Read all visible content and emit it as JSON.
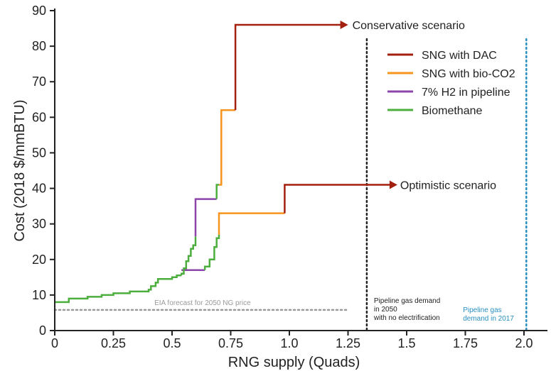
{
  "chart_data": {
    "type": "line",
    "title": "",
    "xlabel": "RNG supply (Quads)",
    "ylabel": "Cost (2018 $/mmBTU)",
    "xlim": [
      0,
      2.1
    ],
    "ylim": [
      0,
      90
    ],
    "x_ticks": [
      "0",
      "0.25",
      "0.5",
      "0.75",
      "1.0",
      "1.25",
      "1.5",
      "1.75",
      "2.0"
    ],
    "y_ticks": [
      "0",
      "10",
      "20",
      "30",
      "40",
      "50",
      "60",
      "70",
      "80",
      "90"
    ],
    "grid": false,
    "legend_position": "top-right",
    "colors": {
      "SNG with DAC": "#a31f0e",
      "SNG with bio-CO2": "#f7941d",
      "7% H2 in pipeline": "#8e44ad",
      "Biomethane": "#4caf3d",
      "eia": "#999999",
      "demand2050": "#222222",
      "demand2017": "#2a8fc1"
    },
    "legend": [
      "SNG with DAC",
      "SNG with bio-CO2",
      "7% H2 in pipeline",
      "Biomethane"
    ],
    "base_curve": {
      "name": "Biomethane",
      "points": [
        [
          0,
          8
        ],
        [
          0.06,
          8
        ],
        [
          0.06,
          9
        ],
        [
          0.14,
          9
        ],
        [
          0.14,
          9.5
        ],
        [
          0.2,
          9.5
        ],
        [
          0.2,
          10
        ],
        [
          0.25,
          10
        ],
        [
          0.25,
          10.5
        ],
        [
          0.32,
          10.5
        ],
        [
          0.32,
          11
        ],
        [
          0.4,
          11
        ],
        [
          0.4,
          11.5
        ],
        [
          0.41,
          11.5
        ],
        [
          0.41,
          12.5
        ],
        [
          0.43,
          12.5
        ],
        [
          0.43,
          13.5
        ],
        [
          0.44,
          13.5
        ],
        [
          0.44,
          14.5
        ],
        [
          0.5,
          14.5
        ],
        [
          0.5,
          15
        ],
        [
          0.52,
          15
        ],
        [
          0.52,
          15.5
        ],
        [
          0.54,
          15.5
        ]
      ]
    },
    "conservative": [
      {
        "name": "Biomethane",
        "points": [
          [
            0.54,
            15.5
          ],
          [
            0.54,
            16
          ],
          [
            0.55,
            16
          ],
          [
            0.55,
            17.5
          ],
          [
            0.56,
            17.5
          ],
          [
            0.56,
            19.5
          ],
          [
            0.57,
            19.5
          ],
          [
            0.57,
            21
          ],
          [
            0.58,
            21
          ],
          [
            0.58,
            23
          ],
          [
            0.59,
            23
          ],
          [
            0.59,
            24
          ],
          [
            0.6,
            24
          ],
          [
            0.6,
            26.5
          ]
        ]
      },
      {
        "name": "7% H2 in pipeline",
        "points": [
          [
            0.6,
            26.5
          ],
          [
            0.6,
            37
          ],
          [
            0.69,
            37
          ]
        ]
      },
      {
        "name": "Biomethane",
        "points": [
          [
            0.69,
            37
          ],
          [
            0.69,
            41
          ],
          [
            0.7,
            41
          ]
        ]
      },
      {
        "name": "SNG with bio-CO2",
        "points": [
          [
            0.7,
            41
          ],
          [
            0.71,
            41
          ],
          [
            0.71,
            62
          ],
          [
            0.77,
            62
          ]
        ]
      },
      {
        "name": "SNG with DAC",
        "points": [
          [
            0.77,
            62
          ],
          [
            0.77,
            86
          ],
          [
            1.22,
            86
          ]
        ]
      }
    ],
    "optimistic": [
      {
        "name": "7% H2 in pipeline",
        "points": [
          [
            0.54,
            17
          ],
          [
            0.55,
            17
          ],
          [
            0.64,
            17
          ]
        ]
      },
      {
        "name": "Biomethane",
        "points": [
          [
            0.64,
            17
          ],
          [
            0.64,
            18
          ],
          [
            0.66,
            18
          ],
          [
            0.66,
            20
          ],
          [
            0.68,
            20
          ],
          [
            0.68,
            23.5
          ],
          [
            0.69,
            23.5
          ],
          [
            0.69,
            26
          ],
          [
            0.7,
            26
          ],
          [
            0.7,
            27
          ]
        ]
      },
      {
        "name": "SNG with bio-CO2",
        "points": [
          [
            0.7,
            27
          ],
          [
            0.7,
            33
          ],
          [
            0.98,
            33
          ]
        ]
      },
      {
        "name": "SNG with DAC",
        "points": [
          [
            0.98,
            33
          ],
          [
            0.98,
            41
          ],
          [
            1.43,
            41
          ]
        ]
      }
    ],
    "conservative_label": "Conservative scenario",
    "optimistic_label": "Optimistic scenario",
    "eia_price": 5.8,
    "eia_label": "EIA forecast for 2050 NG price",
    "demand_2050": 1.33,
    "demand_2050_label": [
      "Pipeline gas demand",
      "in 2050",
      "with no electrification"
    ],
    "demand_2017": 2.01,
    "demand_2017_label": [
      "Pipeline gas",
      "demand in 2017"
    ]
  }
}
